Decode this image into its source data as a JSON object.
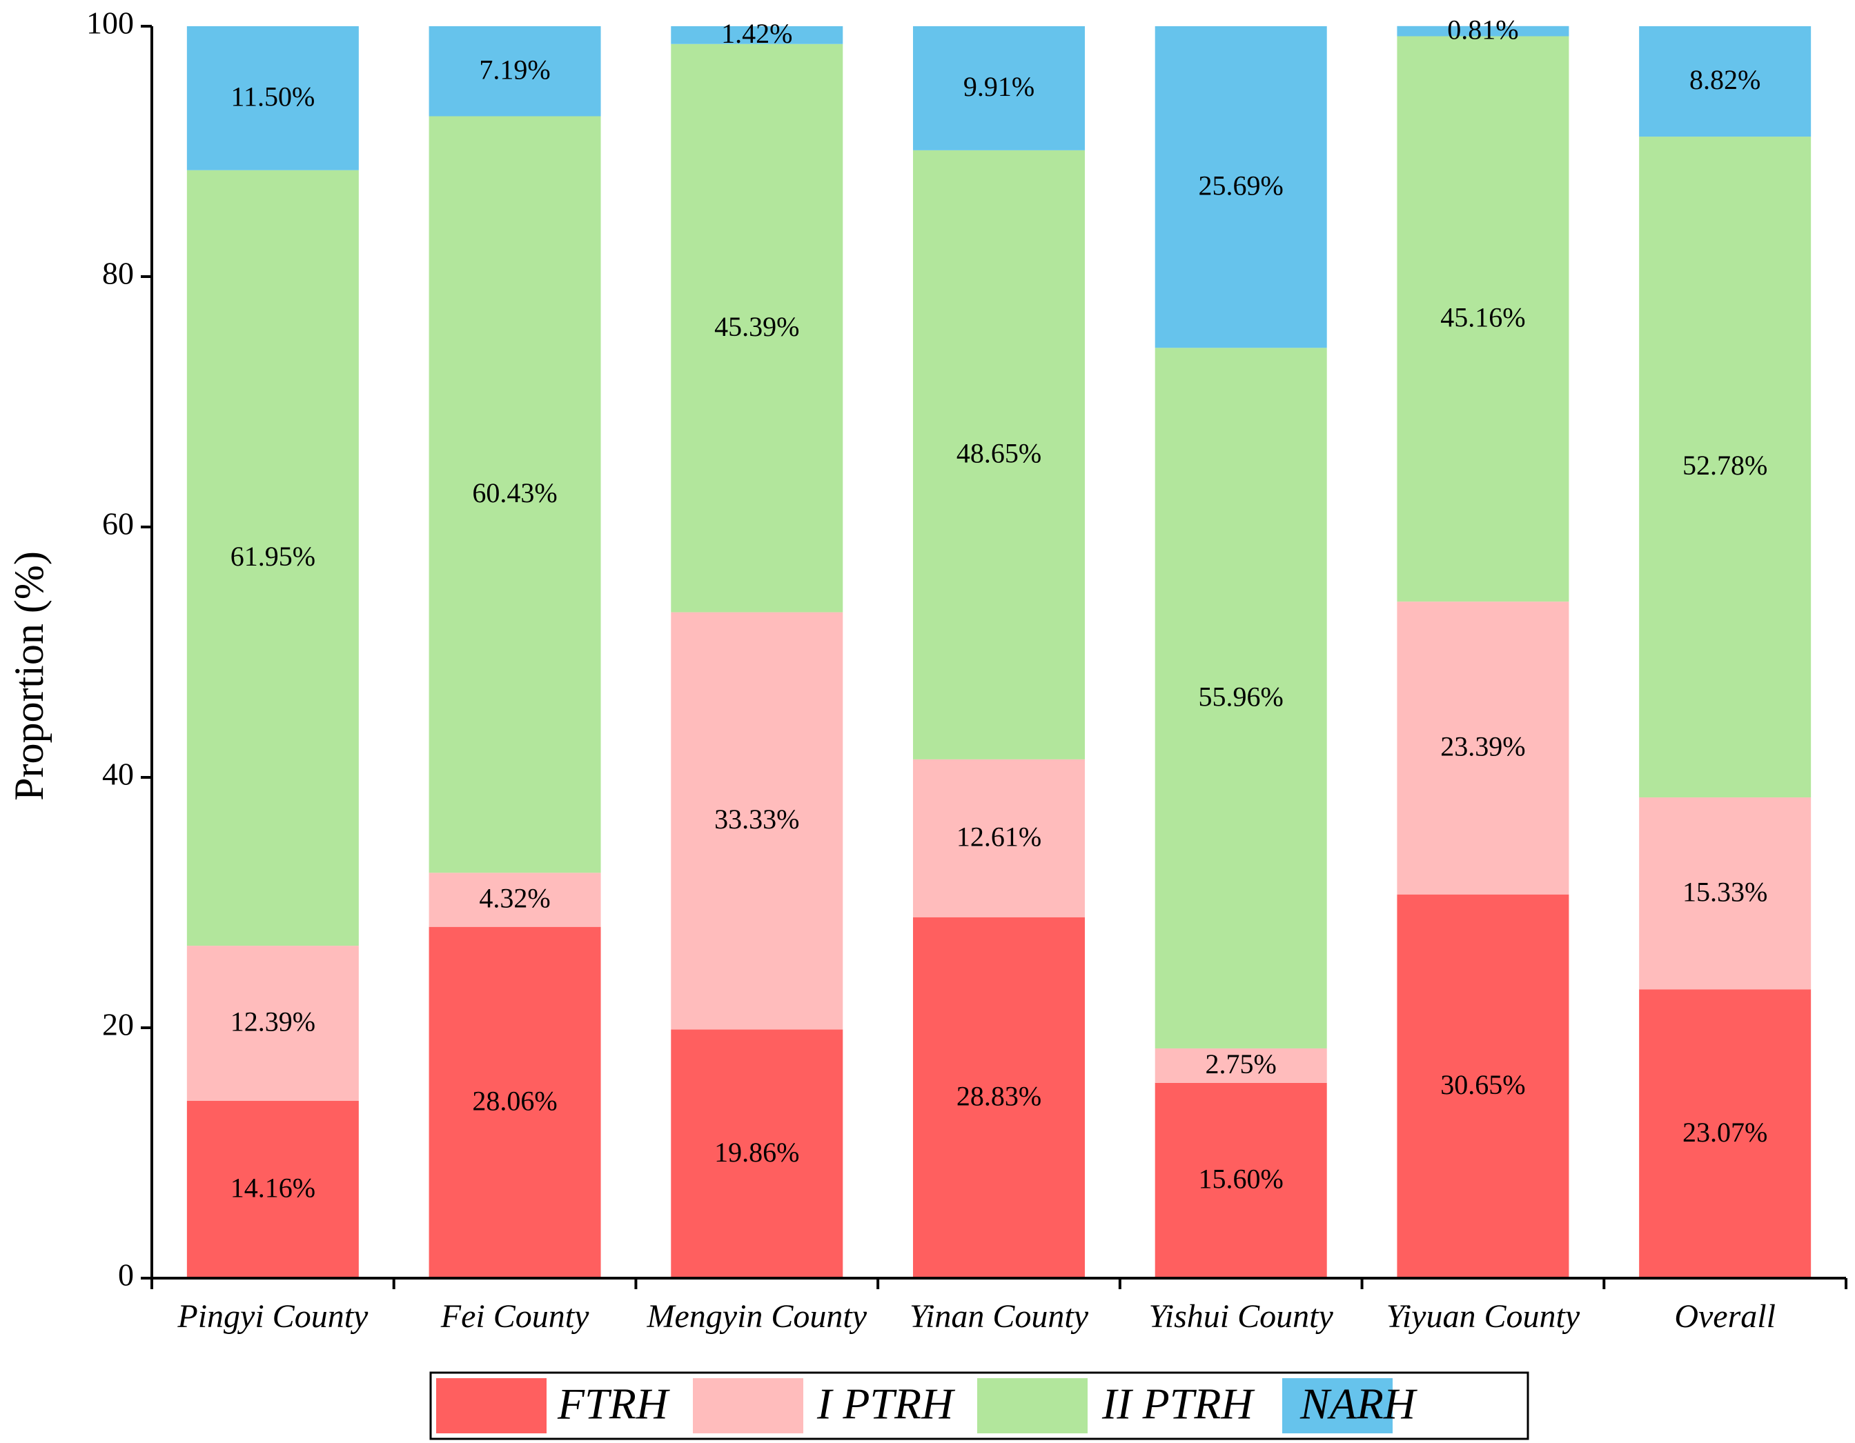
{
  "chart_data": {
    "type": "stacked-bar",
    "ylabel": "Proportion (%)",
    "categories": [
      "Pingyi County",
      "Fei County",
      "Mengyin County",
      "Yinan County",
      "Yishui County",
      "Yiyuan County",
      "Overall"
    ],
    "series": [
      {
        "name": "FTRH",
        "color": "#ff5f5f",
        "values": [
          14.16,
          28.06,
          19.86,
          28.83,
          15.6,
          30.65,
          23.07
        ],
        "value_labels": [
          "14.16%",
          "28.06%",
          "19.86%",
          "28.83%",
          "15.60%",
          "30.65%",
          "23.07%"
        ]
      },
      {
        "name": "I PTRH",
        "color": "#ffbcbc",
        "values": [
          12.39,
          4.32,
          33.33,
          12.61,
          2.75,
          23.39,
          15.33
        ],
        "value_labels": [
          "12.39%",
          "4.32%",
          "33.33%",
          "12.61%",
          "2.75%",
          "23.39%",
          "15.33%"
        ]
      },
      {
        "name": "II PTRH",
        "color": "#b2e69c",
        "values": [
          61.95,
          60.43,
          45.39,
          48.65,
          55.96,
          45.16,
          52.78
        ],
        "value_labels": [
          "61.95%",
          "60.43%",
          "45.39%",
          "48.65%",
          "55.96%",
          "45.16%",
          "52.78%"
        ]
      },
      {
        "name": "NARH",
        "color": "#66c3ec",
        "values": [
          11.5,
          7.19,
          1.42,
          9.91,
          25.69,
          0.81,
          8.82
        ],
        "value_labels": [
          "11.50%",
          "7.19%",
          "1.42%",
          "9.91%",
          "25.69%",
          "0.81%",
          "8.82%"
        ]
      }
    ],
    "ylim": [
      0,
      100
    ],
    "yticks": [
      0,
      20,
      40,
      60,
      80,
      100
    ],
    "legend": "bottom"
  }
}
